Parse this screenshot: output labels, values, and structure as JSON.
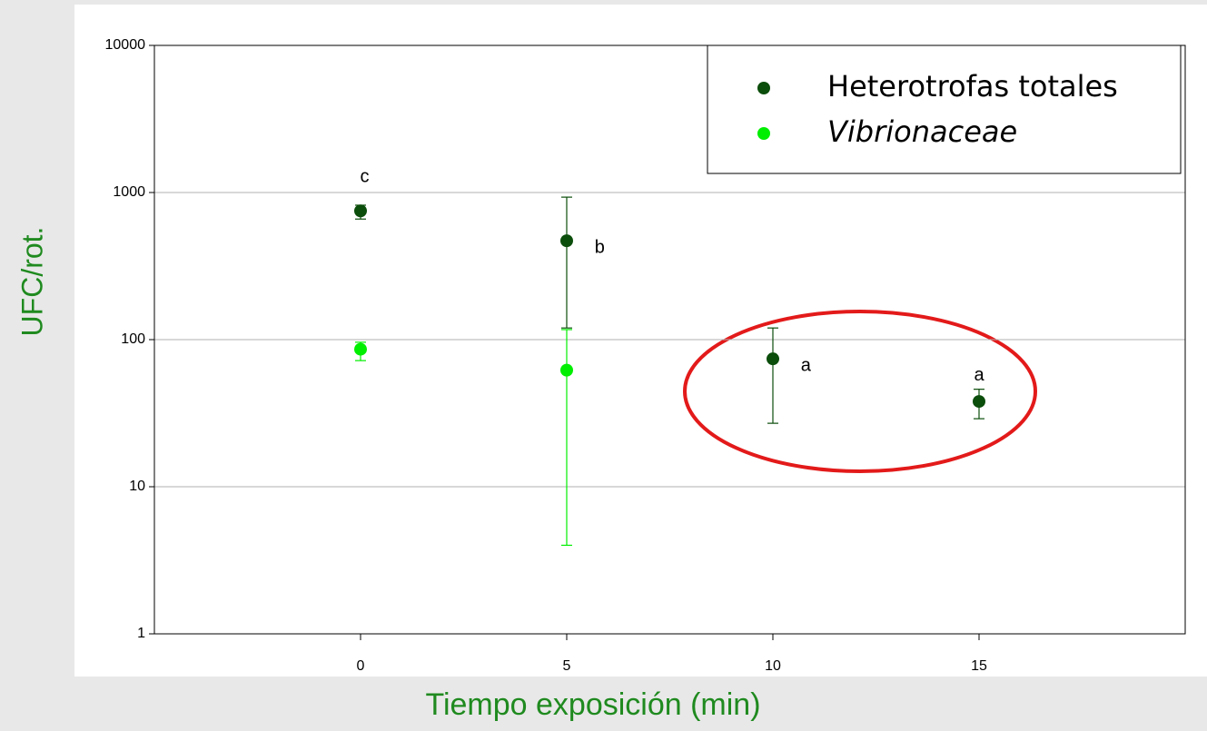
{
  "chart_data": {
    "type": "scatter",
    "xlabel": "Tiempo exposición (min)",
    "ylabel": "UFC/rot.",
    "xlim": [
      -5,
      20
    ],
    "xticks": [
      0,
      5,
      10,
      15
    ],
    "ylim": [
      1,
      10000
    ],
    "yticks": [
      1,
      10,
      100,
      1000,
      10000
    ],
    "log_y": true,
    "grid": true,
    "legend": "upper right",
    "series": [
      {
        "name": "Heterotrofas totales",
        "color": "#0b4d0b",
        "x": [
          0,
          5,
          10,
          15
        ],
        "values": [
          750,
          470,
          74,
          38
        ],
        "lower": [
          660,
          120,
          27,
          29
        ],
        "upper": [
          820,
          930,
          120,
          46
        ]
      },
      {
        "name": "Vibrionaceae",
        "color": "#00ee00",
        "italic": true,
        "x": [
          0,
          5
        ],
        "values": [
          86,
          62
        ],
        "lower": [
          72,
          4
        ],
        "upper": [
          96,
          117
        ]
      }
    ],
    "annotations": [
      {
        "text": "c",
        "x": 0.1,
        "y": 1270
      },
      {
        "text": "b",
        "x": 5.8,
        "y": 420
      },
      {
        "text": "a",
        "x": 10.8,
        "y": 66
      },
      {
        "text": "a",
        "x": 15,
        "y": 57
      }
    ]
  }
}
